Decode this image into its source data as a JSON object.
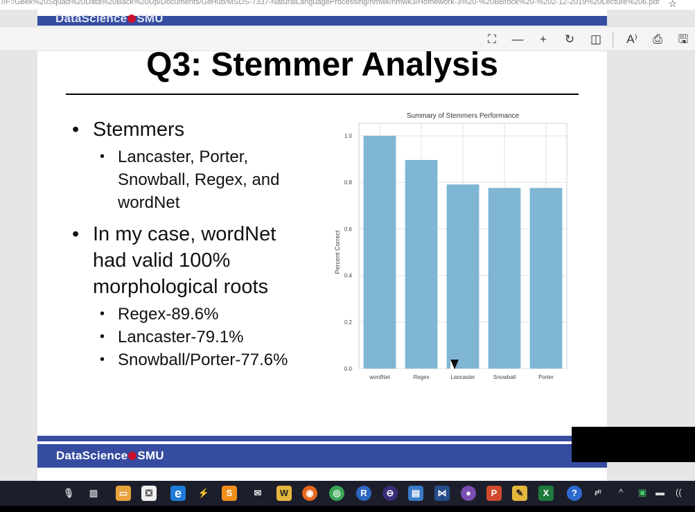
{
  "browser": {
    "url": "//F:/Geek%20Squad%20Data%20Back%20Up/Documents/GitHub/MSDS-7337-NaturalLanguageProcessing/hmwk/hmwk3/Homework-3%20-%20BBrock%20-%202-12-2019%20Lecture%206.pdf",
    "favorite_icon": "star-icon"
  },
  "pdf_toolbar": {
    "buttons": [
      "fit-page-icon",
      "zoom-out-icon",
      "zoom-in-icon",
      "rotate-icon",
      "page-view-icon",
      "read-aloud-icon",
      "print-icon",
      "save-icon"
    ],
    "labels": {
      "fit": "⛶",
      "zoom_out": "—",
      "zoom_in": "+",
      "rotate": "↻",
      "page_view": "◫",
      "read_aloud": "A⁾",
      "print": "⎙",
      "save": "🖫"
    }
  },
  "slide": {
    "brand_prefix": "DataScience",
    "brand_suffix": "SMU",
    "brand_dot_color": "#c8102e",
    "band_color": "#354ca1",
    "title": "Q3: Stemmer Analysis",
    "bullets": {
      "b1": "Stemmers",
      "b1_sub": [
        "Lancaster, Porter,",
        "Snowball, Regex, and",
        "wordNet"
      ],
      "b2_lines": [
        "In my case, wordNet",
        "had valid 100%",
        "morphological roots"
      ],
      "b2_sub": [
        "Regex-89.6%",
        "Lancaster-79.1%",
        "Snowball/Porter-77.6%"
      ]
    }
  },
  "chart_data": {
    "type": "bar",
    "title": "Summary of Stemmers Performance",
    "xlabel": "",
    "ylabel": "Percent Correct",
    "categories": [
      "wordNet",
      "Regex",
      "Lancaster",
      "Snowball",
      "Porter"
    ],
    "values": [
      1.0,
      0.896,
      0.791,
      0.776,
      0.776
    ],
    "ylim": [
      0,
      1.0
    ],
    "yticks": [
      "0.0",
      "0.2",
      "0.4",
      "0.6",
      "0.8",
      "1.0"
    ],
    "grid": true,
    "bar_color": "#7eb6d4"
  },
  "taskbar": {
    "icons": [
      "microphone-icon",
      "task-view-icon",
      "file-explorer-icon",
      "store-icon",
      "edge-icon",
      "vs-code-icon",
      "sublime-icon",
      "mail-icon",
      "word-icon",
      "firefox-icon",
      "chrome-icon",
      "r-icon",
      "eclipse-icon",
      "remote-desktop-icon",
      "vscode-alt-icon",
      "tor-icon",
      "powerpoint-icon",
      "paint-icon",
      "excel-icon",
      "help-icon",
      "people-icon"
    ],
    "tray": [
      "^",
      "▣",
      "▬",
      "(("
    ]
  }
}
